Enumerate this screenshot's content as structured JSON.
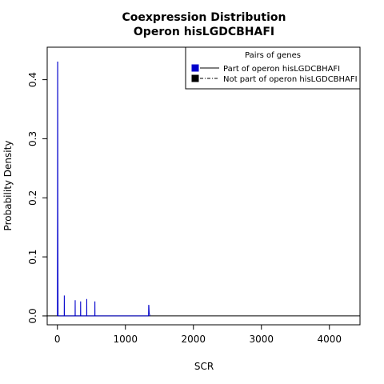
{
  "chart_data": {
    "type": "line",
    "title": "Coexpression Distribution",
    "subtitle": "Operon hisLGDCBHAFI",
    "xlabel": "SCR",
    "ylabel": "Probability Density",
    "xlim": [
      -150,
      4450
    ],
    "ylim": [
      -0.015,
      0.455
    ],
    "x_ticks": [
      0,
      1000,
      2000,
      3000,
      4000
    ],
    "y_ticks": [
      0.0,
      0.1,
      0.2,
      0.3,
      0.4
    ],
    "x_tick_labels": [
      "0",
      "1000",
      "2000",
      "3000",
      "4000"
    ],
    "y_tick_labels": [
      "0.0",
      "0.1",
      "0.2",
      "0.3",
      "0.4"
    ],
    "grid": false,
    "legend": {
      "title": "Pairs of genes",
      "placement": "top-right",
      "entries": [
        "Part of operon hisLGDCBHAFI",
        "Not part of operon hisLGDCBHAFI"
      ]
    },
    "colors": {
      "series1": "#0000cc",
      "series2": "#000000",
      "axis": "#000000"
    },
    "series": [
      {
        "name": "Part of operon hisLGDCBHAFI",
        "x": [
          0,
          2,
          3,
          5,
          7,
          10,
          100,
          101,
          102,
          103,
          200,
          260,
          261,
          262,
          263,
          340,
          341,
          342,
          343,
          430,
          431,
          432,
          433,
          550,
          551,
          552,
          553,
          1340,
          1341,
          1342,
          1345,
          1350,
          1360
        ],
        "y": [
          0,
          0.18,
          0.43,
          0.43,
          0.18,
          0,
          0,
          0.034,
          0.034,
          0,
          0,
          0,
          0.026,
          0.026,
          0,
          0,
          0.024,
          0.024,
          0,
          0,
          0.028,
          0.028,
          0,
          0,
          0.024,
          0.024,
          0,
          0,
          0.01,
          0.018,
          0.018,
          0.005,
          0
        ]
      },
      {
        "name": "Not part of operon hisLGDCBHAFI",
        "x": [
          -150,
          4450
        ],
        "y": [
          0,
          0
        ]
      }
    ]
  }
}
